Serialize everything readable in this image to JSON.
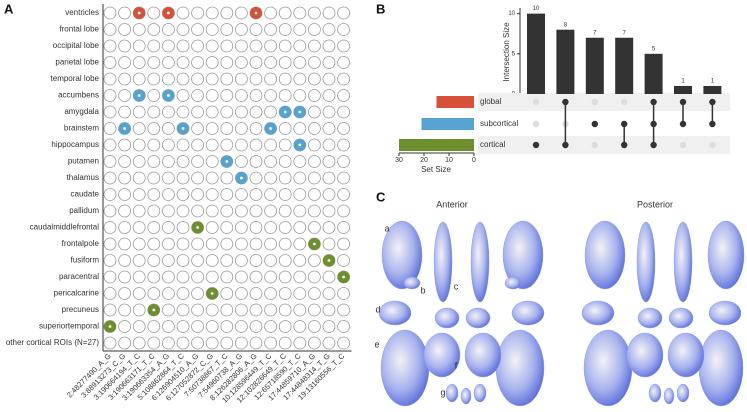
{
  "panel_labels": [
    "A",
    "B",
    "C"
  ],
  "chart_data": [
    {
      "type": "dotmatrix",
      "columns": [
        "2:48277490_A_G",
        "3:88913273_C_G",
        "3:190664194_T_C",
        "3:190663171_T_C",
        "3:190663354_A_G",
        "5:108862864_T_C",
        "6:126904510_A_G",
        "6:127052872_C_G",
        "7:50738867_T_C",
        "7:54960738_A_G",
        "8:126282806_A_G",
        "10:128596449_T_C",
        "12:102826649_T_C",
        "12:65718590_T_C",
        "17:44859710_A_G",
        "17:44848314_T_G",
        "19:13160556_T_C"
      ],
      "rows": [
        {
          "label": "ventricles",
          "color": "#d6503a",
          "hits": [
            2,
            4,
            10
          ]
        },
        {
          "label": "frontal lobe",
          "color": "#d6503a",
          "hits": []
        },
        {
          "label": "occipital lobe",
          "color": "#d6503a",
          "hits": []
        },
        {
          "label": "parietal lobe",
          "color": "#d6503a",
          "hits": []
        },
        {
          "label": "temporal lobe",
          "color": "#d6503a",
          "hits": []
        },
        {
          "label": "accumbens",
          "color": "#56a3d2",
          "hits": [
            2,
            4
          ]
        },
        {
          "label": "amygdala",
          "color": "#56a3d2",
          "hits": [
            12,
            13
          ]
        },
        {
          "label": "brainstem",
          "color": "#56a3d2",
          "hits": [
            1,
            5,
            11
          ]
        },
        {
          "label": "hippocampus",
          "color": "#56a3d2",
          "hits": [
            13
          ]
        },
        {
          "label": "putamen",
          "color": "#56a3d2",
          "hits": [
            8
          ]
        },
        {
          "label": "thalamus",
          "color": "#56a3d2",
          "hits": [
            9
          ]
        },
        {
          "label": "caudate",
          "color": "#56a3d2",
          "hits": []
        },
        {
          "label": "pallidum",
          "color": "#56a3d2",
          "hits": []
        },
        {
          "label": "caudalmiddlefrontal",
          "color": "#6e8f2e",
          "hits": [
            6
          ]
        },
        {
          "label": "frontalpole",
          "color": "#6e8f2e",
          "hits": [
            14
          ]
        },
        {
          "label": "fusiform",
          "color": "#6e8f2e",
          "hits": [
            15
          ]
        },
        {
          "label": "paracentral",
          "color": "#6e8f2e",
          "hits": [
            16
          ]
        },
        {
          "label": "pericalcarine",
          "color": "#6e8f2e",
          "hits": [
            7
          ]
        },
        {
          "label": "precuneus",
          "color": "#6e8f2e",
          "hits": [
            3
          ]
        },
        {
          "label": "superiortemporal",
          "color": "#6e8f2e",
          "hits": [
            0
          ]
        },
        {
          "label": "other cortical ROIs (N=27)",
          "color": "#6e8f2e",
          "hits": []
        }
      ]
    },
    {
      "type": "upset",
      "ylabel": "Intersection Size",
      "values": [
        10,
        8,
        7,
        7,
        5,
        1,
        1
      ],
      "ylim": [
        0,
        10.7
      ],
      "yticks": [
        0,
        5,
        10
      ],
      "sets": [
        {
          "name": "global",
          "color": "#d6503a",
          "size": 15
        },
        {
          "name": "subcortical",
          "color": "#56a3d2",
          "size": 21
        },
        {
          "name": "cortical",
          "color": "#6e8f2e",
          "size": 30
        }
      ],
      "membership": [
        [
          2
        ],
        [
          0,
          2
        ],
        [
          1
        ],
        [
          1,
          2
        ],
        [
          0,
          1,
          2
        ],
        [
          0,
          1
        ],
        [
          0,
          1
        ]
      ],
      "xlabel": "Set Size",
      "xlim": [
        30,
        0
      ],
      "xticks": [
        30,
        20,
        10,
        0
      ]
    }
  ],
  "panel_c": {
    "views": [
      "Anterior",
      "Posterior"
    ],
    "labels": [
      "a",
      "b",
      "c",
      "d",
      "e",
      "f",
      "g"
    ]
  }
}
